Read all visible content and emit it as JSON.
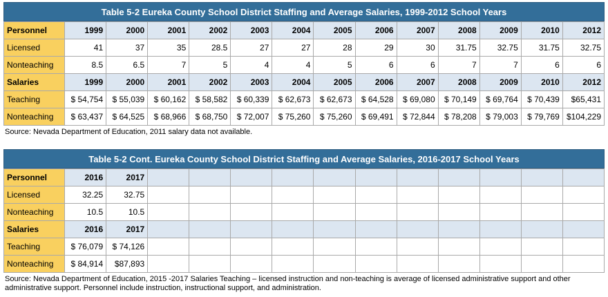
{
  "table1": {
    "title": "Table 5-2 Eureka County School District Staffing and Average Salaries, 1999-2012 School Years",
    "personnel_label": "Personnel",
    "years": [
      "1999",
      "2000",
      "2001",
      "2002",
      "2003",
      "2004",
      "2005",
      "2006",
      "2007",
      "2008",
      "2009",
      "2010",
      "2012"
    ],
    "rows_personnel": [
      {
        "label": "Licensed",
        "values": [
          "41",
          "37",
          "35",
          "28.5",
          "27",
          "27",
          "28",
          "29",
          "30",
          "31.75",
          "32.75",
          "31.75",
          "32.75"
        ]
      },
      {
        "label": "Nonteaching",
        "values": [
          "8.5",
          "6.5",
          "7",
          "5",
          "4",
          "4",
          "5",
          "6",
          "6",
          "7",
          "7",
          "6",
          "6"
        ]
      }
    ],
    "salaries_label": "Salaries",
    "rows_salaries": [
      {
        "label": "Teaching",
        "values": [
          "$ 54,754",
          "$ 55,039",
          "$ 60,162",
          "$ 58,582",
          "$ 60,339",
          "$ 62,673",
          "$ 62,673",
          "$ 64,528",
          "$ 69,080",
          "$ 70,149",
          "$ 69,764",
          "$ 70,439",
          "$65,431"
        ]
      },
      {
        "label": "Nonteaching",
        "values": [
          "$ 63,437",
          "$ 64,525",
          "$ 68,966",
          "$ 68,750",
          "$ 72,007",
          "$ 75,260",
          "$ 75,260",
          "$ 69,491",
          "$ 72,844",
          "$ 78,208",
          "$ 79,003",
          "$ 79,769",
          "$104,229"
        ]
      }
    ],
    "source": "Source: Nevada Department of Education, 2011 salary data not available."
  },
  "table2": {
    "title": "Table 5-2 Cont. Eureka County School District Staffing and Average Salaries, 2016-2017 School Years",
    "personnel_label": "Personnel",
    "years": [
      "2016",
      "2017"
    ],
    "rows_personnel": [
      {
        "label": "Licensed",
        "values": [
          "32.25",
          "32.75"
        ]
      },
      {
        "label": "Nonteaching",
        "values": [
          "10.5",
          "10.5"
        ]
      }
    ],
    "salaries_label": "Salaries",
    "rows_salaries": [
      {
        "label": "Teaching",
        "values": [
          "$ 76,079",
          "$ 74,126"
        ]
      },
      {
        "label": "Nonteaching",
        "values": [
          "$ 84,914",
          "$87,893"
        ]
      }
    ],
    "source": "Source: Nevada Department of Education, 2015 -2017 Salaries Teaching – licensed instruction and non-teaching is average of licensed administrative support and other administrative support.   Personnel include instruction, instructional support, and administration."
  }
}
